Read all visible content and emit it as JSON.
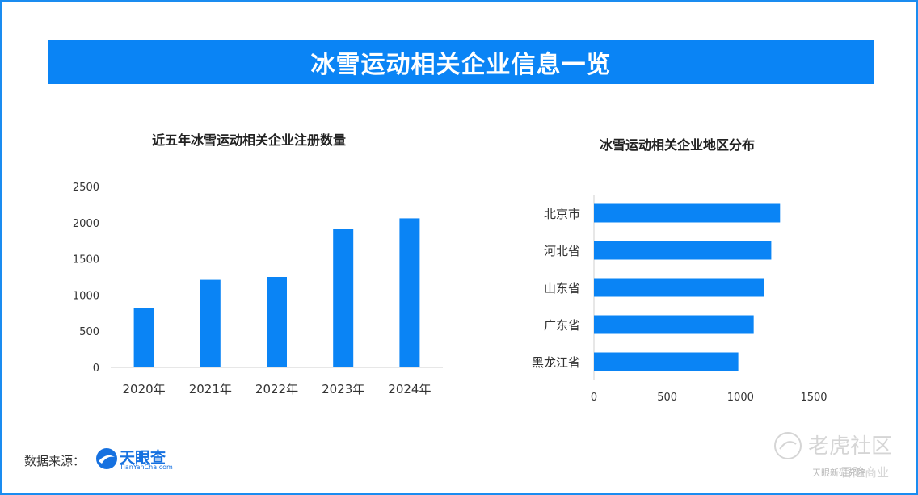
{
  "banner": {
    "title": "冰雪运动相关企业信息一览"
  },
  "chart_data": [
    {
      "type": "bar",
      "title": "近五年冰雪运动相关企业注册数量",
      "categories": [
        "2020年",
        "2021年",
        "2022年",
        "2023年",
        "2024年"
      ],
      "values": [
        820,
        1210,
        1250,
        1910,
        2060
      ],
      "yticks": [
        "0",
        "500",
        "1000",
        "1500",
        "2000",
        "2500"
      ],
      "ylim": [
        0,
        2500
      ],
      "color": "#0a84f5"
    },
    {
      "type": "bar",
      "orientation": "horizontal",
      "title": "冰雪运动相关企业地区分布",
      "categories": [
        "北京市",
        "河北省",
        "山东省",
        "广东省",
        "黑龙江省"
      ],
      "values": [
        1270,
        1210,
        1160,
        1090,
        985
      ],
      "xticks": [
        "0",
        "500",
        "1000",
        "1500"
      ],
      "xlim": [
        0,
        1500
      ],
      "color": "#0a84f5"
    }
  ],
  "footer": {
    "source_label": "数据来源：",
    "logo_name": "天眼查",
    "logo_url_text": "TianYanCha.com",
    "watermark_text": "老虎社区",
    "watermark_sub": "冒险商业",
    "watermark_brand": "天眼新研究院"
  }
}
